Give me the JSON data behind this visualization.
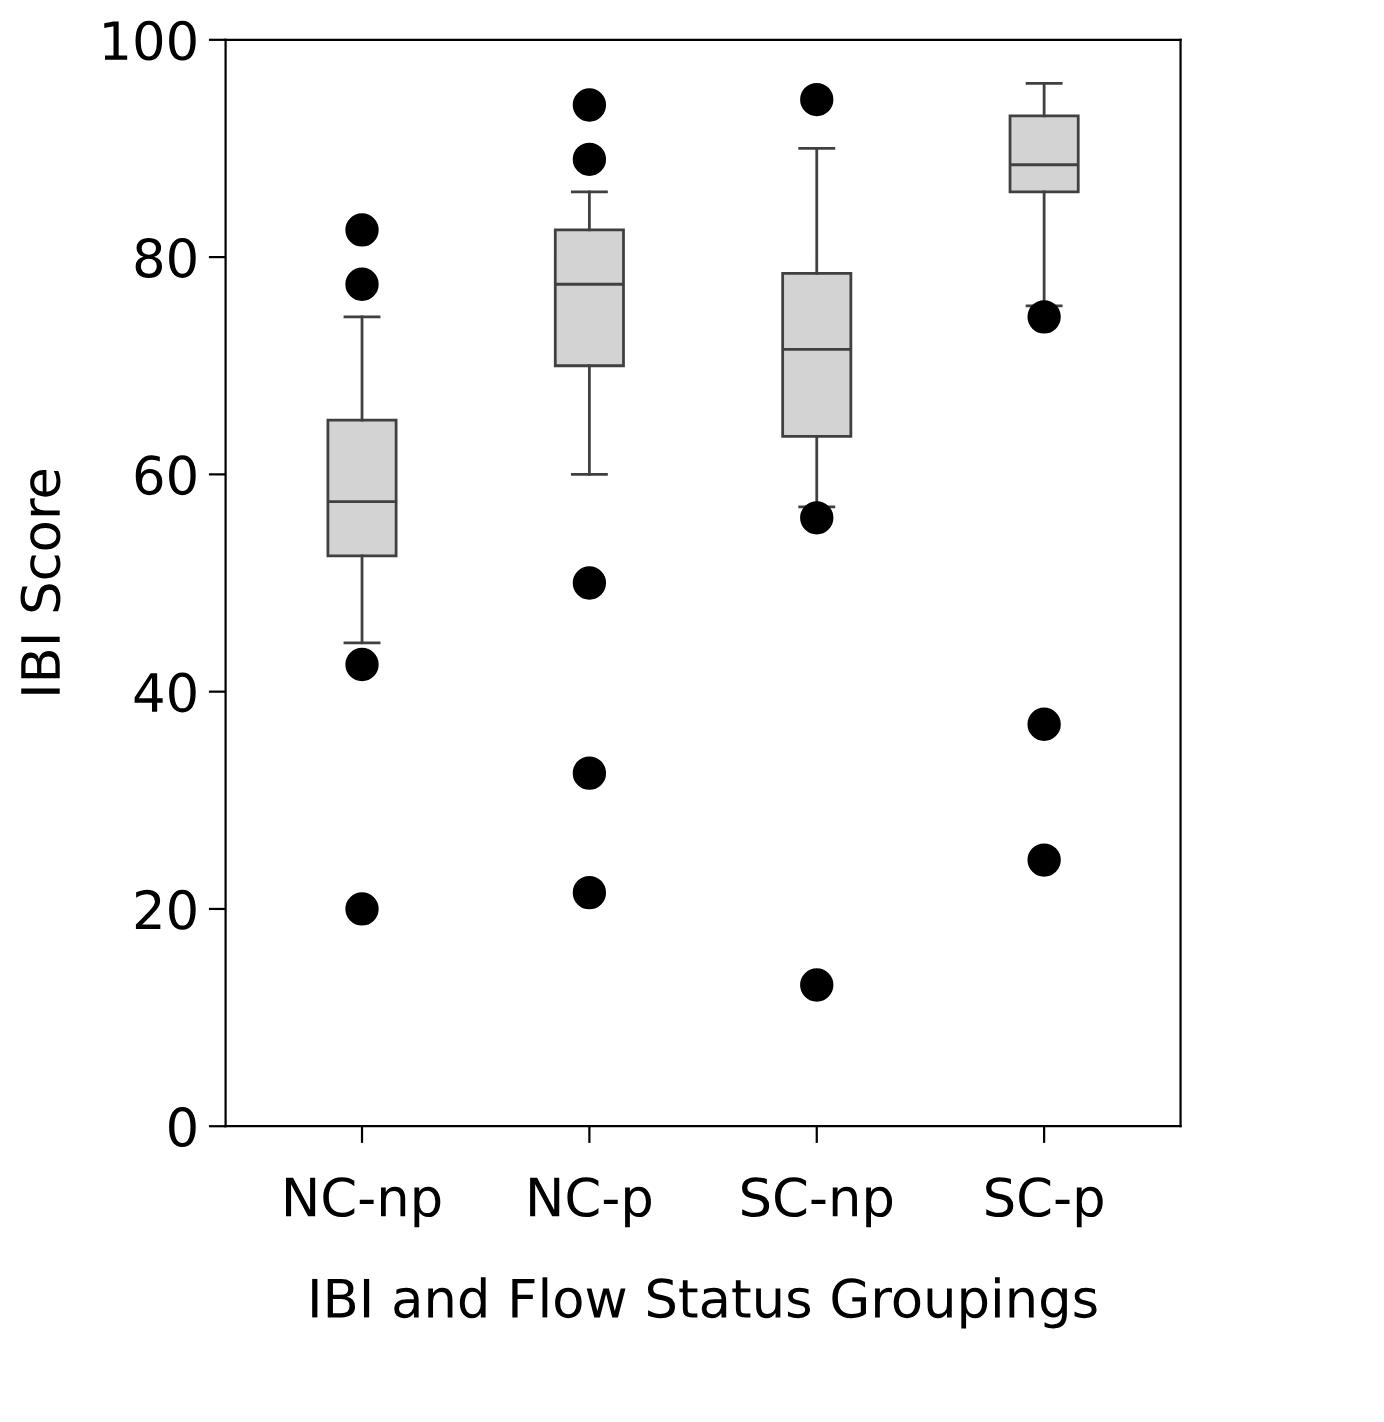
{
  "chart_data": {
    "type": "box",
    "xlabel": "IBI and Flow Status Groupings",
    "ylabel": "IBI Score",
    "categories": [
      "NC-np",
      "NC-p",
      "SC-np",
      "SC-p"
    ],
    "boxes": [
      {
        "low": 44.5,
        "q1": 52.5,
        "median": 57.5,
        "q3": 65,
        "high": 74.5,
        "outliers": [
          82.5,
          77.5,
          42.5,
          20
        ]
      },
      {
        "low": 60,
        "q1": 70,
        "median": 77.5,
        "q3": 82.5,
        "high": 86,
        "outliers": [
          94,
          89,
          50,
          32.5,
          21.5
        ]
      },
      {
        "low": 57,
        "q1": 63.5,
        "median": 71.5,
        "q3": 78.5,
        "high": 90,
        "outliers": [
          94.5,
          56,
          13
        ]
      },
      {
        "low": 75.5,
        "q1": 86,
        "median": 88.5,
        "q3": 93,
        "high": 96,
        "outliers": [
          74.5,
          37,
          24.5
        ]
      }
    ],
    "color": "#d3d3d3",
    "ylim": [
      0,
      100
    ],
    "yticks": [
      0,
      20,
      40,
      60,
      80,
      100
    ],
    "grid": false
  }
}
